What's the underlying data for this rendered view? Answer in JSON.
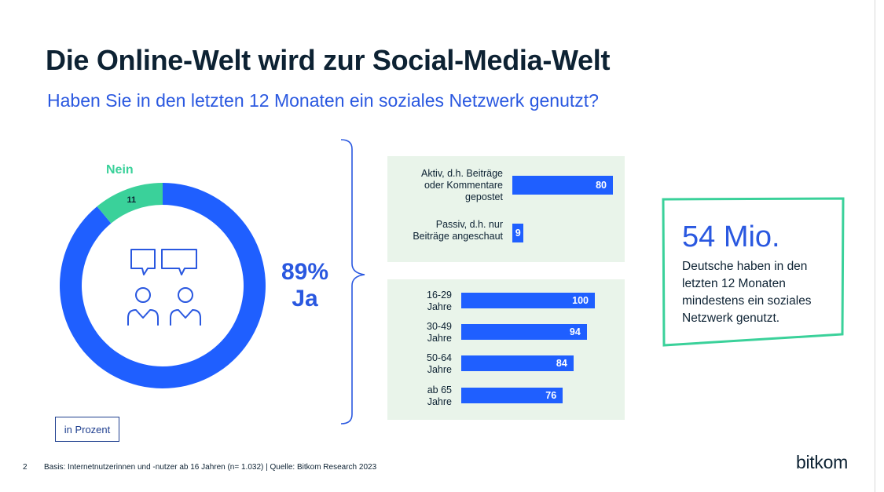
{
  "title": "Die Online-Welt wird zur Social-Media-Welt",
  "subtitle": "Haben Sie in den letzten 12 Monaten ein soziales Netzwerk genutzt?",
  "colors": {
    "accent_blue": "#1f5fff",
    "heading_blue": "#2a58e0",
    "green": "#3ad19a",
    "panel_bg": "#e9f4ea",
    "dark": "#0d2233"
  },
  "donut": {
    "ja_percent": "89%",
    "ja_label": "Ja",
    "nein_label": "Nein",
    "nein_value": "11",
    "center_icon": "people-chat-icon"
  },
  "unit_note": "in Prozent",
  "chart_data": [
    {
      "type": "pie",
      "categories": [
        "Ja",
        "Nein"
      ],
      "values": [
        89,
        11
      ],
      "title": "",
      "colors": [
        "#1f5fff",
        "#3ad19a"
      ]
    },
    {
      "type": "bar",
      "orientation": "horizontal",
      "categories": [
        "Aktiv, d.h. Beiträge oder Kommentare gepostet",
        "Passiv, d.h. nur Beiträge angeschaut"
      ],
      "category_lines": [
        [
          "Aktiv, d.h. Beiträge",
          "oder Kommentare",
          "gepostet"
        ],
        [
          "Passiv, d.h. nur",
          "Beiträge angeschaut"
        ]
      ],
      "values": [
        80,
        9
      ],
      "value_labels": [
        "80",
        "9"
      ],
      "xlim": [
        0,
        100
      ]
    },
    {
      "type": "bar",
      "orientation": "horizontal",
      "categories": [
        "16-29 Jahre",
        "30-49 Jahre",
        "50-64 Jahre",
        "ab 65 Jahre"
      ],
      "category_lines": [
        [
          "16-29",
          "Jahre"
        ],
        [
          "30-49",
          "Jahre"
        ],
        [
          "50-64",
          "Jahre"
        ],
        [
          "ab 65",
          "Jahre"
        ]
      ],
      "values": [
        100,
        94,
        84,
        76
      ],
      "value_labels": [
        "100",
        "94",
        "84",
        "76"
      ],
      "xlim": [
        0,
        100
      ]
    }
  ],
  "stat": {
    "big": "54 Mio.",
    "text": "Deutsche haben in den letzten 12 Monaten mindestens ein soziales Netzwerk genutzt."
  },
  "footer": {
    "page_number": "2",
    "source": "Basis: Internetnutzerinnen und -nutzer ab 16 Jahren (n= 1.032) | Quelle: Bitkom Research 2023",
    "logo": "bitkom"
  }
}
